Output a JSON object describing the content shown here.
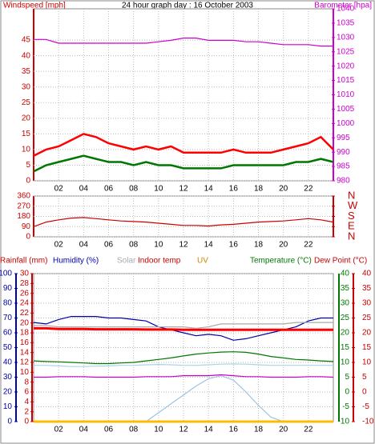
{
  "chart_data": [
    {
      "type": "line",
      "title": "24 hour graph day : 16 October 2003",
      "ylabel": "Windspeed [mph]",
      "y2label": "Barometer [hpa]",
      "xlim": [
        0,
        24
      ],
      "xticks": [
        {
          "value": 2,
          "label": "02"
        },
        {
          "value": 4,
          "label": "04"
        },
        {
          "value": 6,
          "label": "06"
        },
        {
          "value": 8,
          "label": "08"
        },
        {
          "value": 10,
          "label": "10"
        },
        {
          "value": 12,
          "label": "12"
        },
        {
          "value": 14,
          "label": "14"
        },
        {
          "value": 16,
          "label": "16"
        },
        {
          "value": 18,
          "label": "18"
        },
        {
          "value": 20,
          "label": "20"
        },
        {
          "value": 22,
          "label": "22"
        }
      ],
      "ylim": [
        0,
        55
      ],
      "yticks": [
        0,
        5,
        10,
        15,
        20,
        25,
        30,
        35,
        40,
        45
      ],
      "y2lim": [
        980,
        1040
      ],
      "y2ticks": [
        980,
        985,
        990,
        995,
        1000,
        1005,
        1010,
        1015,
        1020,
        1025,
        1030,
        1035,
        1040
      ],
      "grid": true,
      "x": [
        0,
        1,
        2,
        3,
        4,
        5,
        6,
        7,
        8,
        9,
        10,
        11,
        12,
        13,
        14,
        15,
        16,
        17,
        18,
        19,
        20,
        21,
        22,
        23,
        24
      ],
      "series": [
        {
          "color": "#ff0000",
          "values": [
            8,
            10,
            11,
            13,
            15,
            14,
            12,
            11,
            10,
            11,
            10,
            11,
            9,
            9,
            9,
            9,
            10,
            9,
            9,
            9,
            10,
            11,
            12,
            14,
            10
          ]
        },
        {
          "color": "#007700",
          "values": [
            3,
            5,
            6,
            7,
            8,
            7,
            6,
            6,
            5,
            6,
            5,
            5,
            4,
            4,
            4,
            4,
            5,
            5,
            5,
            5,
            5,
            6,
            6,
            7,
            6
          ]
        },
        {
          "color": "#cc00cc",
          "axis": "y2",
          "values": [
            1029.3,
            1029.3,
            1028,
            1028,
            1028,
            1028,
            1028,
            1028,
            1028,
            1028,
            1028.5,
            1029,
            1029.8,
            1029.8,
            1029,
            1029,
            1029,
            1028.5,
            1028.5,
            1028,
            1027.5,
            1027.5,
            1027.5,
            1027,
            1027
          ]
        }
      ]
    },
    {
      "type": "line",
      "xlim": [
        0,
        24
      ],
      "xticks": [
        {
          "value": 2,
          "label": "02"
        },
        {
          "value": 4,
          "label": "04"
        },
        {
          "value": 6,
          "label": "06"
        },
        {
          "value": 8,
          "label": "08"
        },
        {
          "value": 10,
          "label": "10"
        },
        {
          "value": 12,
          "label": "12"
        },
        {
          "value": 14,
          "label": "14"
        },
        {
          "value": 16,
          "label": "16"
        },
        {
          "value": 18,
          "label": "18"
        },
        {
          "value": 20,
          "label": "20"
        },
        {
          "value": 22,
          "label": "22"
        }
      ],
      "ylim": [
        0,
        360
      ],
      "yticks": [
        0,
        90,
        180,
        270,
        360
      ],
      "y2lim": [
        0,
        360
      ],
      "y2ticks": [
        {
          "value": 360,
          "label": "N"
        },
        {
          "value": 270,
          "label": "W"
        },
        {
          "value": 180,
          "label": "S"
        },
        {
          "value": 90,
          "label": "E"
        },
        {
          "value": 0,
          "label": "N"
        }
      ],
      "grid": true,
      "x": [
        0,
        1,
        2,
        3,
        4,
        5,
        6,
        7,
        8,
        9,
        10,
        11,
        12,
        13,
        14,
        15,
        16,
        17,
        18,
        19,
        20,
        21,
        22,
        23,
        24
      ],
      "series": [
        {
          "color": "#cc0000",
          "values": [
            90,
            130,
            150,
            165,
            170,
            160,
            150,
            140,
            135,
            130,
            120,
            110,
            100,
            100,
            95,
            105,
            110,
            120,
            130,
            135,
            140,
            150,
            160,
            150,
            130
          ]
        }
      ]
    },
    {
      "type": "line",
      "xlim": [
        0,
        24
      ],
      "xticks": [
        {
          "value": 2,
          "label": "02"
        },
        {
          "value": 4,
          "label": "04"
        },
        {
          "value": 6,
          "label": "06"
        },
        {
          "value": 8,
          "label": "08"
        },
        {
          "value": 10,
          "label": "10"
        },
        {
          "value": 12,
          "label": "12"
        },
        {
          "value": 14,
          "label": "14"
        },
        {
          "value": 16,
          "label": "16"
        },
        {
          "value": 18,
          "label": "18"
        },
        {
          "value": 20,
          "label": "20"
        },
        {
          "value": 22,
          "label": "22"
        }
      ],
      "grid": true,
      "y_axes": [
        {
          "color": "#0000aa",
          "lim": [
            0,
            100
          ],
          "ticks": [
            0,
            10,
            20,
            30,
            40,
            50,
            60,
            70,
            80,
            90,
            100
          ]
        },
        {
          "color": "#cc0000",
          "lim": [
            0,
            30
          ],
          "ticks": [
            0,
            2,
            4,
            6,
            8,
            10,
            12,
            14,
            16,
            18,
            20,
            22,
            24,
            26,
            28,
            30
          ]
        },
        {
          "color": "#007700",
          "lim": [
            -10,
            40
          ],
          "ticks": [
            -10,
            -5,
            0,
            5,
            10,
            15,
            20,
            25,
            30,
            35,
            40
          ]
        },
        {
          "color": "#cc0000",
          "lim": [
            -10,
            40
          ],
          "ticks": [
            -10,
            -5,
            0,
            5,
            10,
            15,
            20,
            25,
            30,
            35,
            40
          ]
        }
      ],
      "x": [
        0,
        1,
        2,
        3,
        4,
        5,
        6,
        7,
        8,
        9,
        10,
        11,
        12,
        13,
        14,
        15,
        16,
        17,
        18,
        19,
        20,
        21,
        22,
        23,
        24
      ],
      "series": [
        {
          "name": "Rainfall (mm)",
          "label_color": "#cc0000",
          "color": "#ff0000",
          "axis": 1,
          "values": [
            0,
            0,
            0,
            0,
            0,
            0,
            0,
            0,
            0,
            0,
            0,
            0,
            0,
            0,
            0,
            0,
            0,
            0,
            0,
            0,
            0,
            0,
            0,
            0,
            0
          ]
        },
        {
          "name": "Humidity (%)",
          "label_color": "#0000aa",
          "color": "#0000aa",
          "axis": 0,
          "values": [
            67,
            66,
            69,
            71,
            71,
            71,
            70,
            70,
            69,
            68,
            64,
            62,
            60,
            58,
            59,
            58,
            55,
            56,
            58,
            60,
            62,
            64,
            68,
            70,
            70
          ]
        },
        {
          "name": "Solar",
          "label_color": "#aaaaaa",
          "color": "#99c4e8",
          "axis": 0,
          "values": [
            0,
            0,
            0,
            0,
            0,
            0,
            0,
            0,
            0,
            0,
            6,
            12,
            18,
            24,
            29,
            31,
            28,
            20,
            11,
            3,
            0,
            0,
            0,
            0,
            0
          ]
        },
        {
          "name": "Indoor temp",
          "label_color": "#cc0000",
          "color": "#ff0000",
          "axis": 2,
          "values": [
            21.5,
            21.5,
            21.3,
            21.3,
            21.3,
            21.2,
            21.2,
            21.2,
            21.2,
            21.1,
            21.1,
            21.1,
            21,
            21,
            21,
            21,
            21,
            21,
            21,
            21,
            21,
            21,
            21,
            21,
            21
          ]
        },
        {
          "name": "UV",
          "label_color": "#cc8800",
          "color": "#ffbb00",
          "axis": 0,
          "values": [
            0,
            0,
            0,
            0,
            0,
            0,
            0,
            0,
            0,
            0,
            0,
            0,
            0,
            0,
            0,
            0,
            0,
            0,
            0,
            0,
            0,
            0,
            0,
            0,
            0
          ]
        },
        {
          "name": "Temperature (°C)",
          "label_color": "#007700",
          "color": "#007700",
          "axis": 2,
          "values": [
            10.5,
            10.3,
            10.2,
            10,
            9.8,
            9.6,
            9.6,
            9.8,
            10,
            10.5,
            11,
            11.5,
            12.2,
            12.8,
            13.2,
            13.5,
            13.6,
            13.4,
            12.8,
            12,
            11.5,
            11,
            10.8,
            10.5,
            10.3
          ]
        },
        {
          "name": "Dew Point (°C)",
          "label_color": "#cc0000",
          "color": "#aad4e8",
          "axis": 3,
          "values": [
            9,
            9,
            8.8,
            8.6,
            8.6,
            8.7,
            8.8,
            9,
            9,
            9.2,
            9.3,
            9.2,
            9,
            9,
            9.2,
            9.4,
            9.5,
            9.4,
            9.2,
            9,
            9,
            9,
            9,
            9,
            9
          ]
        },
        {
          "color": "#aaaaaa",
          "axis": 0,
          "values": [
            65,
            65,
            64,
            64,
            64,
            64,
            64,
            64,
            64,
            64,
            64,
            64,
            64,
            63,
            64,
            66,
            66,
            66,
            66,
            66,
            66,
            67,
            67,
            67,
            67
          ]
        },
        {
          "color": "#cc00cc",
          "axis": 2,
          "values": [
            5,
            5,
            5.2,
            5.2,
            5.2,
            5,
            5,
            5,
            5,
            5.2,
            5.2,
            5.2,
            5.5,
            5.5,
            5.5,
            5.8,
            5.5,
            5.2,
            5.2,
            5,
            5,
            5,
            5.2,
            5.2,
            5
          ]
        }
      ]
    }
  ]
}
